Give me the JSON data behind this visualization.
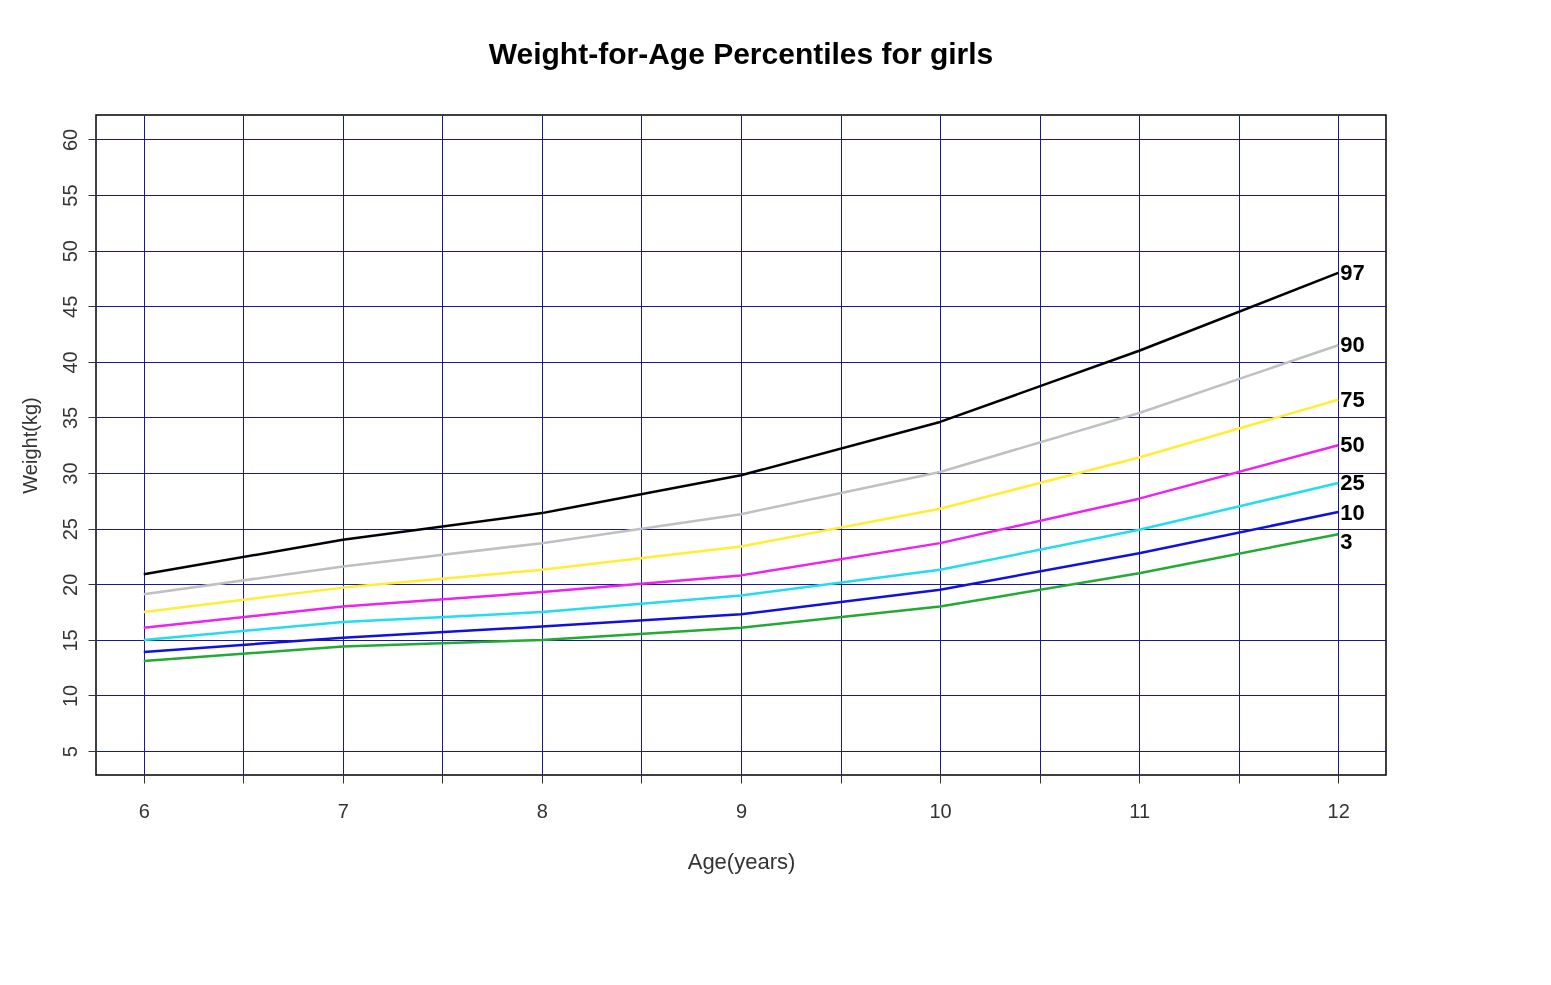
{
  "chart_data": {
    "type": "line",
    "title": "Weight-for-Age Percentiles for girls",
    "xlabel": "Age(years)",
    "ylabel": "Weight(kg)",
    "x": [
      6,
      7,
      8,
      9,
      10,
      11,
      12
    ],
    "series": [
      {
        "name": "97",
        "color": "#000000",
        "values": [
          20.9,
          24.0,
          26.4,
          29.8,
          34.6,
          41.0,
          48.0
        ]
      },
      {
        "name": "90",
        "color": "#c0c0c0",
        "values": [
          19.1,
          21.6,
          23.7,
          26.3,
          30.1,
          35.4,
          41.5
        ]
      },
      {
        "name": "75",
        "color": "#ffee33",
        "values": [
          17.5,
          19.7,
          21.3,
          23.4,
          26.8,
          31.4,
          36.6
        ]
      },
      {
        "name": "50",
        "color": "#ee22ee",
        "values": [
          16.1,
          18.0,
          19.3,
          20.8,
          23.7,
          27.7,
          32.5
        ]
      },
      {
        "name": "25",
        "color": "#22ddee",
        "values": [
          15.0,
          16.6,
          17.5,
          19.0,
          21.3,
          24.9,
          29.1
        ]
      },
      {
        "name": "10",
        "color": "#1111dd",
        "values": [
          13.9,
          15.2,
          16.2,
          17.3,
          19.5,
          22.8,
          26.5
        ]
      },
      {
        "name": "3",
        "color": "#22aa33",
        "values": [
          13.1,
          14.4,
          15.0,
          16.1,
          18.0,
          21.0,
          24.5
        ]
      }
    ],
    "xlim": [
      5.76,
      12.24
    ],
    "ylim": [
      2.85,
      62.2
    ],
    "xticks": [
      6,
      {
        "value": 6.5,
        "label": null
      },
      7,
      {
        "value": 7.5,
        "label": null
      },
      8,
      {
        "value": 8.5,
        "label": null
      },
      9,
      {
        "value": 9.5,
        "label": null
      },
      10,
      {
        "value": 10.5,
        "label": null
      },
      11,
      {
        "value": 11.5,
        "label": null
      },
      12
    ],
    "yticks": [
      5,
      10,
      15,
      20,
      25,
      30,
      35,
      40,
      45,
      50,
      55,
      60
    ],
    "grid": true,
    "legend": false,
    "marker": "none",
    "line_style": "solid"
  }
}
